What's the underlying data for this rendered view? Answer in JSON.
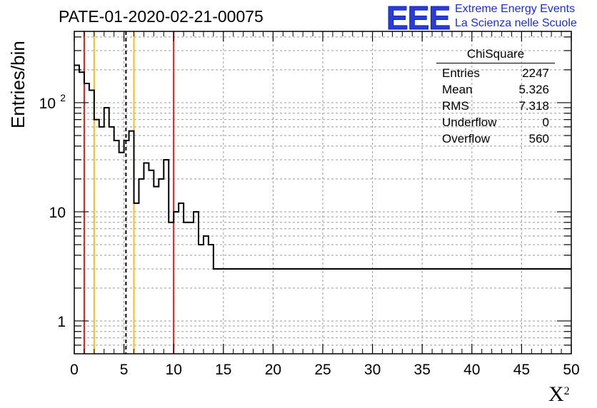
{
  "title": "PATE-01-2020-02-21-00075",
  "logo": {
    "text": "EEE",
    "line1": "Extreme Energy Events",
    "line2": "La Scienza nelle Scuole",
    "color": "#1a2fd8"
  },
  "stats_box": {
    "title": "ChiSquare",
    "rows": [
      {
        "label": "Entries",
        "value": "2247"
      },
      {
        "label": "Mean",
        "value": "5.326"
      },
      {
        "label": "RMS",
        "value": "7.318"
      },
      {
        "label": "Underflow",
        "value": "0"
      },
      {
        "label": "Overflow",
        "value": "560"
      }
    ]
  },
  "chart_data": {
    "type": "histogram",
    "xlabel": "X",
    "xlabel_superscript": "2",
    "ylabel": "Entries/bin",
    "xlim": [
      0,
      50
    ],
    "ylim": [
      0.5,
      450
    ],
    "yscale": "log",
    "bin_width": 0.5,
    "grid": true,
    "x_ticks": [
      "0",
      "5",
      "10",
      "15",
      "20",
      "25",
      "30",
      "35",
      "40",
      "45",
      "50"
    ],
    "y_ticks": [
      {
        "value": 1,
        "label": "1"
      },
      {
        "value": 10,
        "label": "10"
      },
      {
        "value": 100,
        "label": "10",
        "exponent": "2"
      }
    ],
    "values": [
      220,
      190,
      150,
      130,
      70,
      60,
      90,
      60,
      45,
      35,
      45,
      55,
      12,
      20,
      28,
      24,
      17,
      20,
      30,
      8,
      10,
      12,
      8,
      8,
      10,
      5,
      6,
      5,
      3,
      3,
      3,
      3,
      3,
      3,
      3,
      3,
      3,
      3,
      3,
      3,
      3,
      3,
      3,
      3,
      3,
      3,
      3,
      3,
      3,
      3,
      3,
      3,
      3,
      3,
      3,
      3,
      3,
      3,
      3,
      3,
      3,
      3,
      3,
      3,
      3,
      3,
      3,
      3,
      3,
      3,
      3,
      3,
      3,
      3,
      3,
      3,
      3,
      3,
      3,
      3,
      3,
      3,
      3,
      3,
      3,
      3,
      3,
      3,
      3,
      3,
      3,
      3,
      3,
      3,
      3,
      3,
      3,
      3,
      3,
      3
    ],
    "vlines": [
      {
        "x": 1,
        "color": "#d62020",
        "style": "solid"
      },
      {
        "x": 2,
        "color": "#f0c020",
        "style": "solid"
      },
      {
        "x": 5.2,
        "color": "#000000",
        "style": "dashed"
      },
      {
        "x": 6,
        "color": "#f0c020",
        "style": "solid"
      },
      {
        "x": 10,
        "color": "#d62020",
        "style": "solid"
      }
    ]
  }
}
